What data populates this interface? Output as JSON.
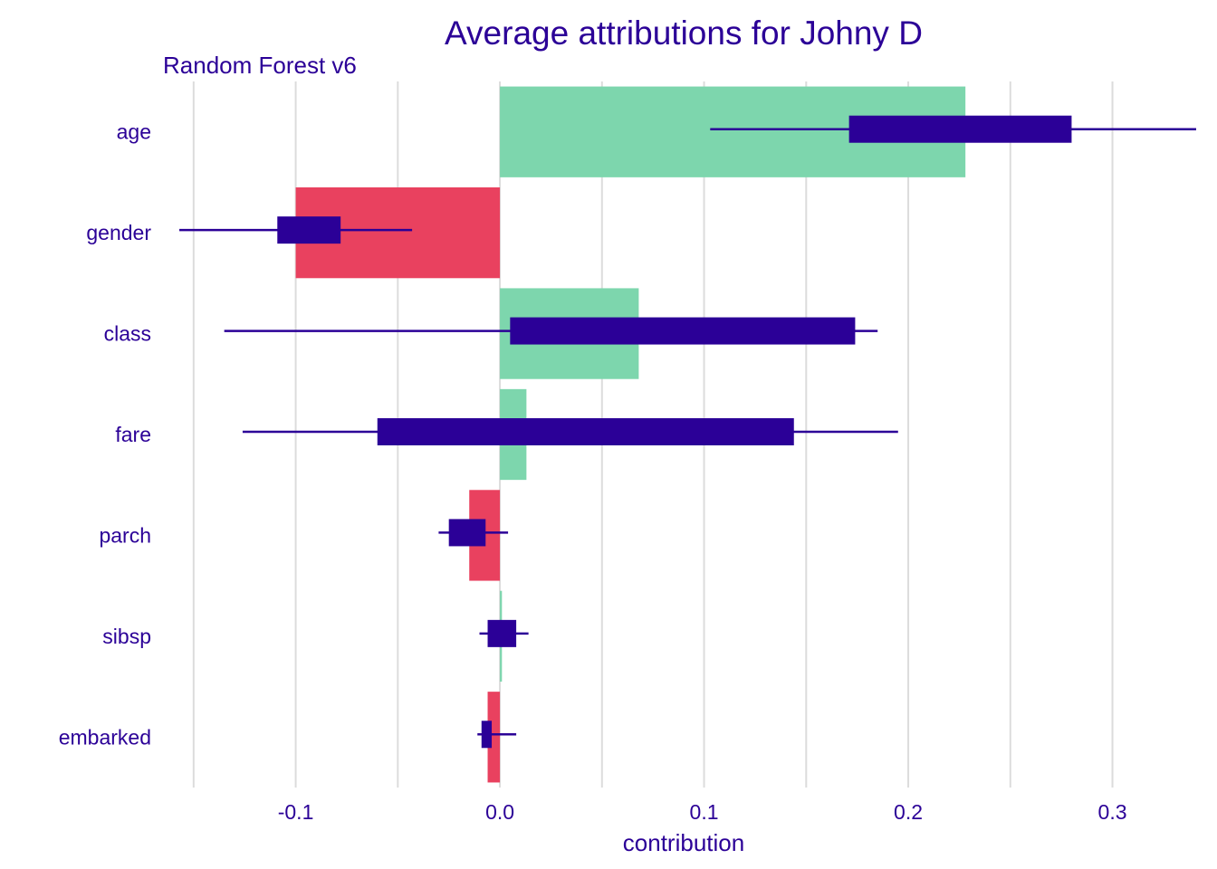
{
  "colors": {
    "positive": "#7dd6ad",
    "negative": "#e9415f",
    "box": "#2b0097",
    "grid": "#dcdcdc",
    "text": "#2b0097"
  },
  "chart_data": {
    "type": "bar",
    "title": "Average attributions for Johny D",
    "subtitle": "Random Forest v6",
    "xlabel": "contribution",
    "ylabel": "",
    "xlim": [
      -0.165,
      0.345
    ],
    "x_ticks": [
      -0.1,
      0.0,
      0.1,
      0.2,
      0.3
    ],
    "x_tick_labels": [
      "-0.1",
      "0.0",
      "0.1",
      "0.2",
      "0.3"
    ],
    "grid": true,
    "legend": "none",
    "categories": [
      "age",
      "gender",
      "class",
      "fare",
      "parch",
      "sibsp",
      "embarked"
    ],
    "values": [
      0.228,
      -0.1,
      0.068,
      0.013,
      -0.015,
      0.001,
      -0.006
    ],
    "boxplots": [
      {
        "category": "age",
        "whisker_low": 0.103,
        "q1": 0.171,
        "q3": 0.28,
        "whisker_high": 0.341
      },
      {
        "category": "gender",
        "whisker_low": -0.157,
        "q1": -0.109,
        "q3": -0.078,
        "whisker_high": -0.043
      },
      {
        "category": "class",
        "whisker_low": -0.135,
        "q1": 0.005,
        "q3": 0.174,
        "whisker_high": 0.185
      },
      {
        "category": "fare",
        "whisker_low": -0.126,
        "q1": -0.06,
        "q3": 0.144,
        "whisker_high": 0.195
      },
      {
        "category": "parch",
        "whisker_low": -0.03,
        "q1": -0.025,
        "q3": -0.007,
        "whisker_high": 0.004
      },
      {
        "category": "sibsp",
        "whisker_low": -0.01,
        "q1": -0.006,
        "q3": 0.008,
        "whisker_high": 0.014
      },
      {
        "category": "embarked",
        "whisker_low": -0.011,
        "q1": -0.009,
        "q3": -0.004,
        "whisker_high": 0.008
      }
    ]
  }
}
